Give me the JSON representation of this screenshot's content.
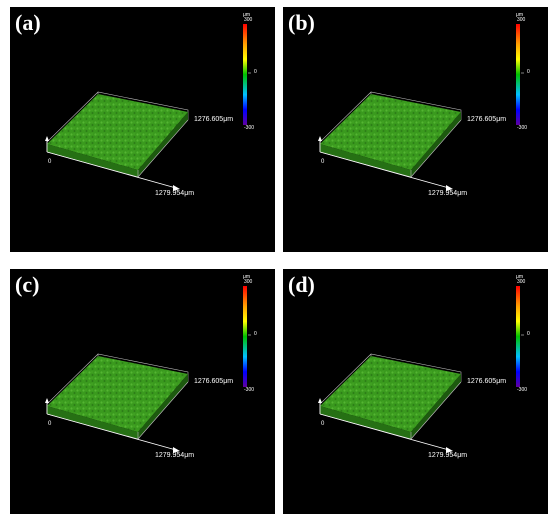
{
  "panels": [
    {
      "label": "(a)",
      "unit": "μm",
      "cbar_max": "300",
      "cbar_mid": "0",
      "cbar_min": "-300",
      "y_extent": "1276.605μm",
      "x_extent": "1279.954μm",
      "origin": "0"
    },
    {
      "label": "(b)",
      "unit": "μm",
      "cbar_max": "300",
      "cbar_mid": "0",
      "cbar_min": "-300",
      "y_extent": "1276.605μm",
      "x_extent": "1279.954μm",
      "origin": "0"
    },
    {
      "label": "(c)",
      "unit": "μm",
      "cbar_max": "300",
      "cbar_mid": "0",
      "cbar_min": "-300",
      "y_extent": "1276.605μm",
      "x_extent": "1279.954μm",
      "origin": "0"
    },
    {
      "label": "(d)",
      "unit": "μm",
      "cbar_max": "300",
      "cbar_mid": "0",
      "cbar_min": "-300",
      "y_extent": "1276.605μm",
      "x_extent": "1279.954μm",
      "origin": "0"
    }
  ],
  "colors": {
    "background": "#000000",
    "surface": "#3a9a1e",
    "surface_light": "#5fc23a",
    "surface_dark": "#267014",
    "axis": "#ffffff"
  }
}
